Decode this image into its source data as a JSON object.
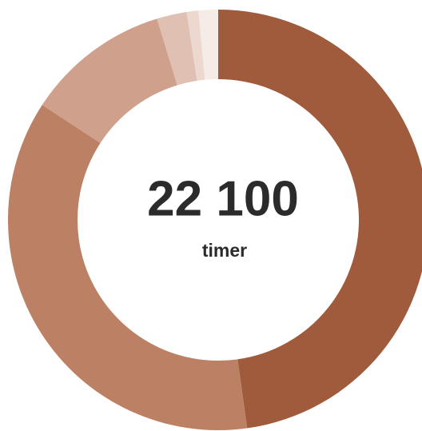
{
  "chart_data": {
    "type": "donut",
    "center_value": "22 100",
    "center_label": "timer",
    "values": [
      47.8,
      36.4,
      11.1,
      2.3,
      0.9,
      1.5
    ],
    "colors": [
      "#a05a3c",
      "#bc8064",
      "#cfa08c",
      "#e0c0b2",
      "#ecd8ce",
      "#f6ece7"
    ]
  }
}
